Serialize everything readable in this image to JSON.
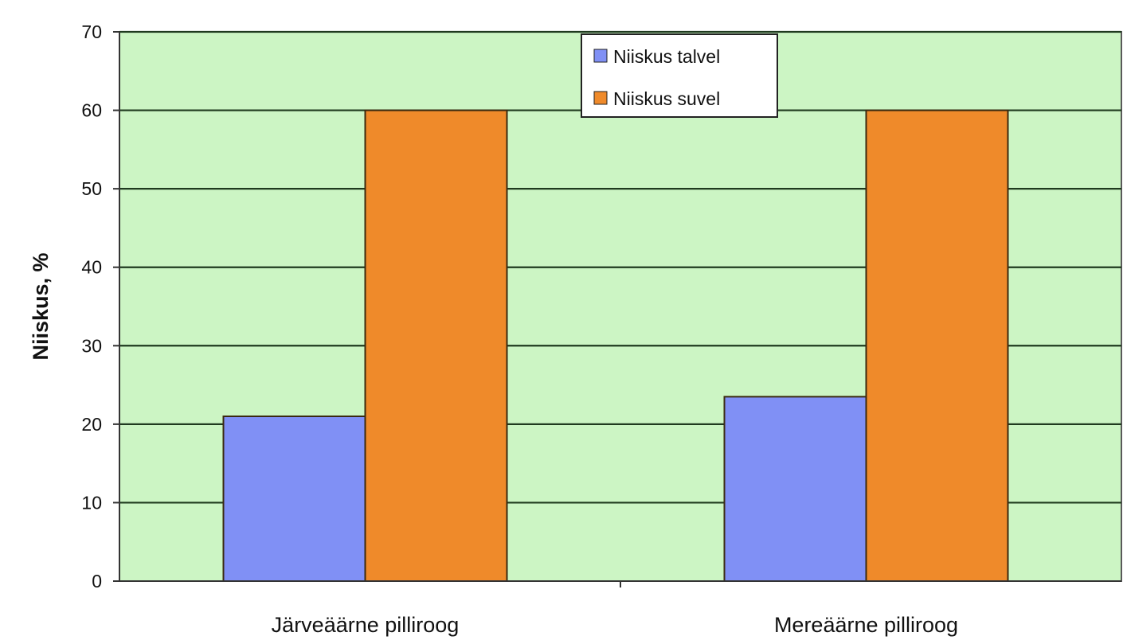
{
  "chart_data": {
    "type": "bar",
    "categories": [
      "Järveäärne pilliroog",
      "Mereäärne pilliroog"
    ],
    "series": [
      {
        "name": "Niiskus talvel",
        "values": [
          21,
          23.5
        ],
        "color": "#8090f5"
      },
      {
        "name": "Niiskus suvel",
        "values": [
          60,
          60
        ],
        "color": "#ef8a2a"
      }
    ],
    "title": "",
    "xlabel": "",
    "ylabel": "Niiskus, %",
    "ylim": [
      0,
      70
    ],
    "yticks": [
      0,
      10,
      20,
      30,
      40,
      50,
      60,
      70
    ],
    "grid": true,
    "legend_position": "top-center",
    "plot_background": "#ccf5c4",
    "grid_color": "#1f3a1f",
    "bar_outline": "#3a2a10"
  }
}
